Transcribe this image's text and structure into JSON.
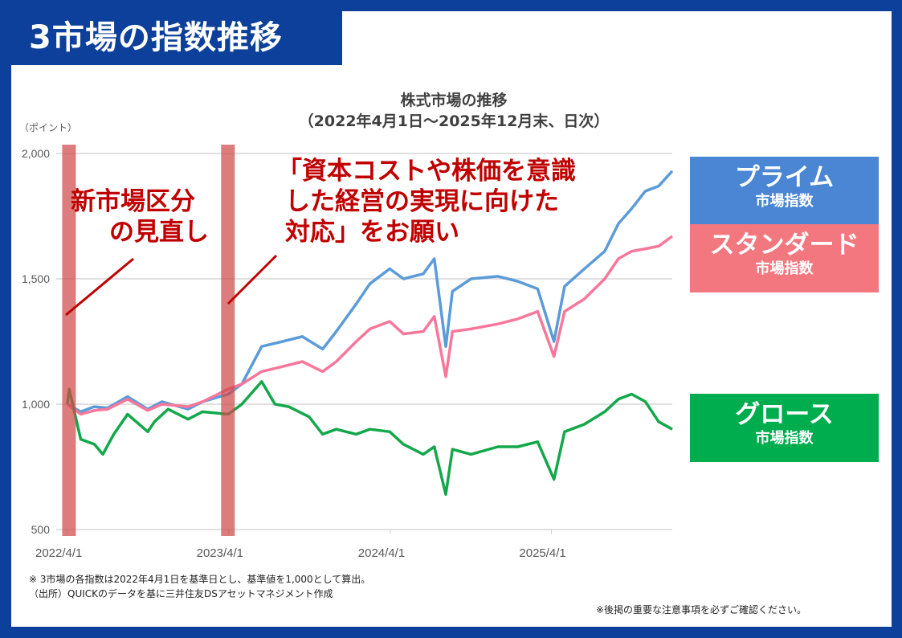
{
  "header": {
    "title": "3市場の指数推移"
  },
  "chart_data": {
    "type": "line",
    "title": "株式市場の推移",
    "subtitle": "（2022年4月1日～2025年12月末、日次）",
    "ylabel": "（ポイント）",
    "ylim": [
      500,
      2000
    ],
    "yticks": [
      "2,000",
      "1,500",
      "1,000",
      "500"
    ],
    "ytick_values": [
      2000,
      1500,
      1000,
      500
    ],
    "xticks": [
      "2022/4/1",
      "2023/4/1",
      "2024/4/1",
      "2025/4/1"
    ],
    "xtick_dates": [
      "2022-04-01",
      "2023-04-01",
      "2024-04-01",
      "2025-04-01"
    ],
    "xlim": [
      "2022-04-01",
      "2025-12-31"
    ],
    "grid": "horizontal",
    "highlight_periods": [
      [
        "2022-03-20",
        "2022-04-20"
      ],
      [
        "2023-03-15",
        "2023-04-15"
      ]
    ],
    "series": [
      {
        "name": "プライム市場指数",
        "color": "#5b9bd9",
        "points": [
          [
            "2022-04-01",
            1000
          ],
          [
            "2022-05-01",
            970
          ],
          [
            "2022-06-01",
            990
          ],
          [
            "2022-07-01",
            985
          ],
          [
            "2022-08-15",
            1030
          ],
          [
            "2022-09-30",
            980
          ],
          [
            "2022-11-01",
            1010
          ],
          [
            "2022-12-30",
            980
          ],
          [
            "2023-02-01",
            1010
          ],
          [
            "2023-03-31",
            1040
          ],
          [
            "2023-05-01",
            1080
          ],
          [
            "2023-06-15",
            1230
          ],
          [
            "2023-08-01",
            1250
          ],
          [
            "2023-09-15",
            1270
          ],
          [
            "2023-10-31",
            1220
          ],
          [
            "2023-12-01",
            1290
          ],
          [
            "2024-01-15",
            1400
          ],
          [
            "2024-02-15",
            1480
          ],
          [
            "2024-03-31",
            1540
          ],
          [
            "2024-05-01",
            1500
          ],
          [
            "2024-06-15",
            1520
          ],
          [
            "2024-07-10",
            1580
          ],
          [
            "2024-08-05",
            1230
          ],
          [
            "2024-08-20",
            1450
          ],
          [
            "2024-10-01",
            1500
          ],
          [
            "2024-12-01",
            1510
          ],
          [
            "2025-01-15",
            1490
          ],
          [
            "2025-03-01",
            1460
          ],
          [
            "2025-04-07",
            1250
          ],
          [
            "2025-05-01",
            1470
          ],
          [
            "2025-06-15",
            1540
          ],
          [
            "2025-07-31",
            1610
          ],
          [
            "2025-08-31",
            1720
          ],
          [
            "2025-09-30",
            1780
          ],
          [
            "2025-10-31",
            1850
          ],
          [
            "2025-11-30",
            1870
          ],
          [
            "2025-12-31",
            1930
          ]
        ]
      },
      {
        "name": "スタンダード市場指数",
        "color": "#f7779b",
        "points": [
          [
            "2022-04-01",
            1000
          ],
          [
            "2022-05-01",
            960
          ],
          [
            "2022-06-01",
            975
          ],
          [
            "2022-07-01",
            980
          ],
          [
            "2022-08-15",
            1020
          ],
          [
            "2022-09-30",
            975
          ],
          [
            "2022-11-01",
            1000
          ],
          [
            "2022-12-30",
            990
          ],
          [
            "2023-02-01",
            1010
          ],
          [
            "2023-03-31",
            1060
          ],
          [
            "2023-05-01",
            1080
          ],
          [
            "2023-06-15",
            1130
          ],
          [
            "2023-08-01",
            1150
          ],
          [
            "2023-09-15",
            1170
          ],
          [
            "2023-10-31",
            1130
          ],
          [
            "2023-12-01",
            1170
          ],
          [
            "2024-01-15",
            1250
          ],
          [
            "2024-02-15",
            1300
          ],
          [
            "2024-03-31",
            1330
          ],
          [
            "2024-05-01",
            1280
          ],
          [
            "2024-06-15",
            1290
          ],
          [
            "2024-07-10",
            1350
          ],
          [
            "2024-08-05",
            1110
          ],
          [
            "2024-08-20",
            1290
          ],
          [
            "2024-10-01",
            1300
          ],
          [
            "2024-12-01",
            1320
          ],
          [
            "2025-01-15",
            1340
          ],
          [
            "2025-03-01",
            1370
          ],
          [
            "2025-04-07",
            1190
          ],
          [
            "2025-05-01",
            1370
          ],
          [
            "2025-06-15",
            1420
          ],
          [
            "2025-07-31",
            1500
          ],
          [
            "2025-08-31",
            1580
          ],
          [
            "2025-09-30",
            1610
          ],
          [
            "2025-10-31",
            1620
          ],
          [
            "2025-11-30",
            1630
          ],
          [
            "2025-12-31",
            1670
          ]
        ]
      },
      {
        "name": "グロース市場指数",
        "color": "#12a84a",
        "points": [
          [
            "2022-04-01",
            1000
          ],
          [
            "2022-04-05",
            1060
          ],
          [
            "2022-05-01",
            860
          ],
          [
            "2022-06-01",
            840
          ],
          [
            "2022-06-20",
            800
          ],
          [
            "2022-07-15",
            880
          ],
          [
            "2022-08-15",
            960
          ],
          [
            "2022-09-30",
            890
          ],
          [
            "2022-10-15",
            930
          ],
          [
            "2022-11-15",
            980
          ],
          [
            "2022-12-30",
            940
          ],
          [
            "2023-02-01",
            970
          ],
          [
            "2023-03-31",
            960
          ],
          [
            "2023-05-01",
            1000
          ],
          [
            "2023-06-15",
            1090
          ],
          [
            "2023-07-15",
            1000
          ],
          [
            "2023-08-15",
            990
          ],
          [
            "2023-09-30",
            950
          ],
          [
            "2023-10-31",
            880
          ],
          [
            "2023-12-01",
            900
          ],
          [
            "2024-01-15",
            880
          ],
          [
            "2024-02-15",
            900
          ],
          [
            "2024-03-31",
            890
          ],
          [
            "2024-05-01",
            840
          ],
          [
            "2024-06-15",
            800
          ],
          [
            "2024-07-10",
            830
          ],
          [
            "2024-08-05",
            640
          ],
          [
            "2024-08-20",
            820
          ],
          [
            "2024-10-01",
            800
          ],
          [
            "2024-12-01",
            830
          ],
          [
            "2025-01-15",
            830
          ],
          [
            "2025-03-01",
            850
          ],
          [
            "2025-04-07",
            700
          ],
          [
            "2025-05-01",
            890
          ],
          [
            "2025-06-15",
            920
          ],
          [
            "2025-07-31",
            970
          ],
          [
            "2025-08-31",
            1020
          ],
          [
            "2025-09-30",
            1040
          ],
          [
            "2025-10-31",
            1010
          ],
          [
            "2025-11-30",
            930
          ],
          [
            "2025-12-31",
            900
          ]
        ]
      }
    ]
  },
  "annotations": {
    "a1": [
      "新市場区分",
      "の見直し"
    ],
    "a2": [
      "「資本コストや株価を意識",
      "した経営の実現に向けた",
      "対応」をお願い"
    ]
  },
  "legend": [
    {
      "name": "プライム",
      "sub": "市場指数",
      "color": "#4a86d4"
    },
    {
      "name": "スタンダード",
      "sub": "市場指数",
      "color": "#f3777f"
    },
    {
      "name": "グロース",
      "sub": "市場指数",
      "color": "#00ad4e"
    }
  ],
  "notes": {
    "n1": "※ 3市場の各指数は2022年4月1日を基準日とし、基準値を1,000として算出。",
    "n2": "（出所）QUICKのデータを基に三井住友DSアセットマネジメント作成",
    "n3": "※後掲の重要な注意事項を必ずご確認ください。"
  }
}
